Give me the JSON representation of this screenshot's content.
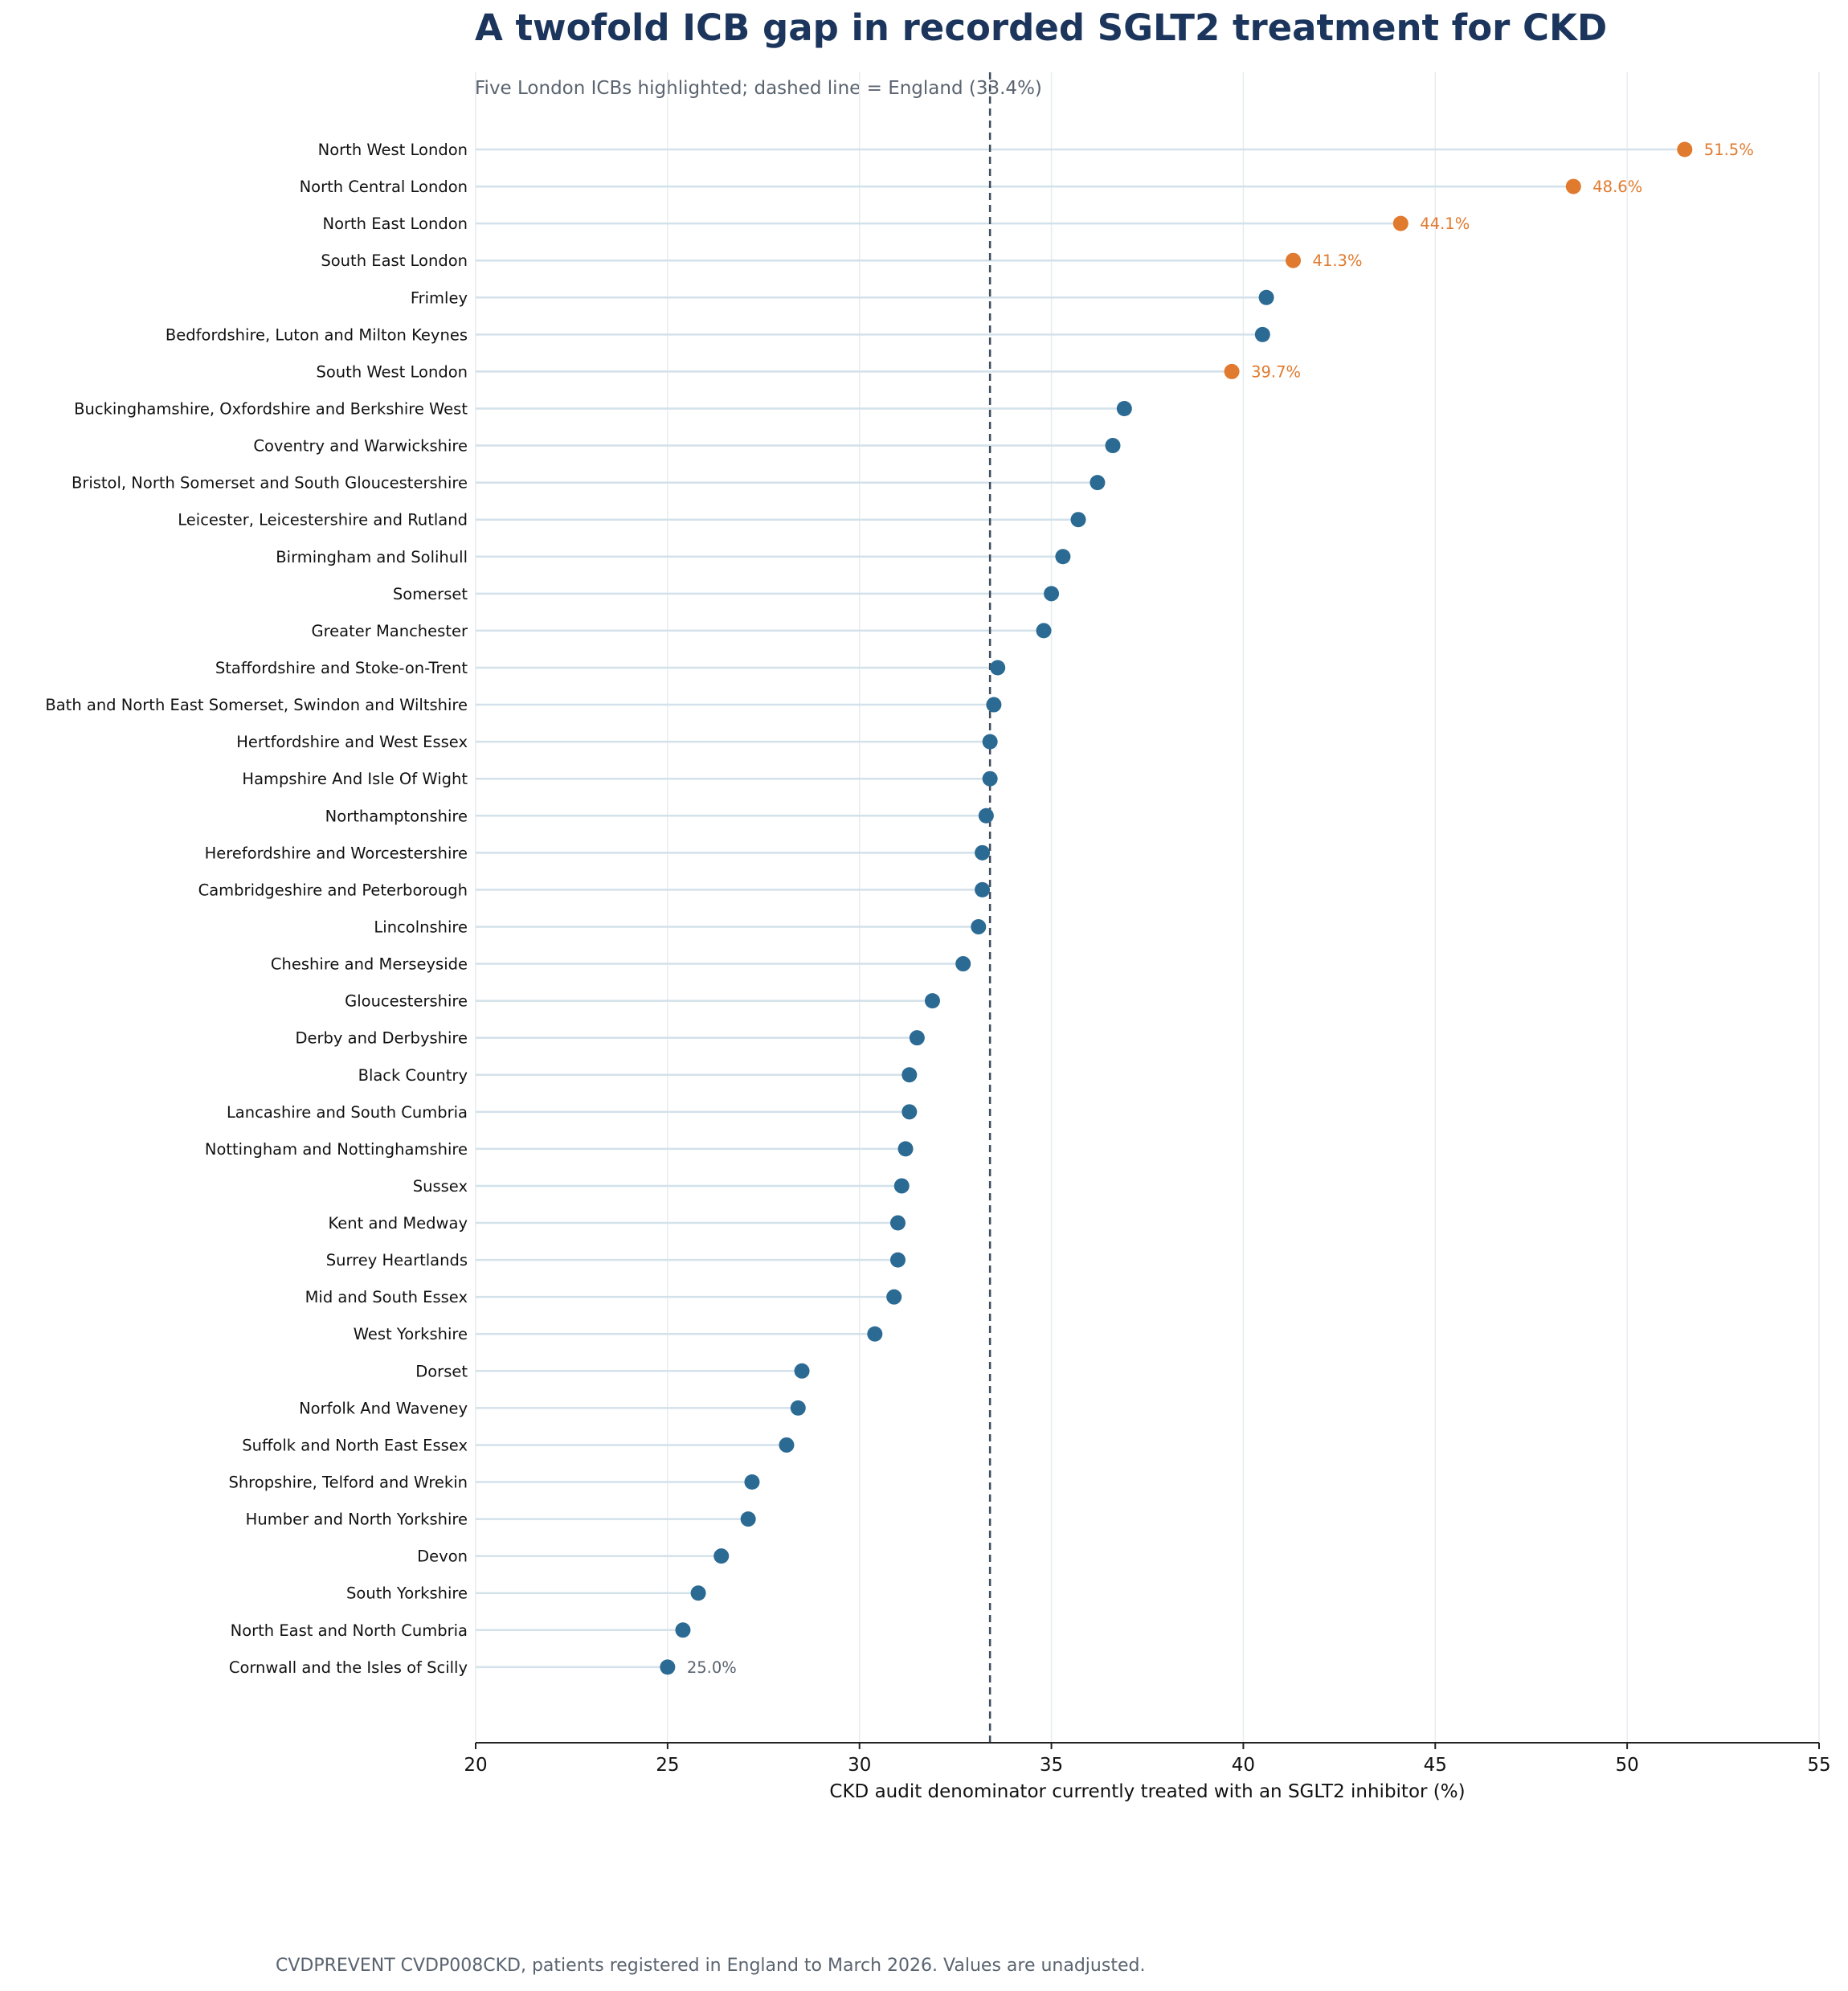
{
  "chart_data": {
    "type": "dot",
    "title": "A twofold ICB gap in recorded SGLT2 treatment for CKD",
    "subtitle": "Five London ICBs highlighted; dashed line = England (33.4%)",
    "xlabel": "CKD audit denominator currently treated with an SGLT2 inhibitor (%)",
    "xlim": [
      20,
      55
    ],
    "xticks": [
      20,
      25,
      30,
      35,
      40,
      45,
      50,
      55
    ],
    "grid": "vertical",
    "reference_line": {
      "value": 33.4,
      "style": "dashed"
    },
    "source": "CVDPREVENT CVDP008CKD, patients registered in England to March 2026. Values are unadjusted.",
    "colors": {
      "highlight": "#e07a2e",
      "default": "#2b6a93",
      "reference": "#3f4c5c",
      "stem": "#d3e1ea",
      "grid": "#e6ecf0",
      "title": "#1b355c",
      "muted": "#5a6470"
    },
    "points": [
      {
        "label": "North West London",
        "value": 51.5,
        "highlight": true,
        "value_label": "51.5%"
      },
      {
        "label": "North Central London",
        "value": 48.6,
        "highlight": true,
        "value_label": "48.6%"
      },
      {
        "label": "North East London",
        "value": 44.1,
        "highlight": true,
        "value_label": "44.1%"
      },
      {
        "label": "South East London",
        "value": 41.3,
        "highlight": true,
        "value_label": "41.3%"
      },
      {
        "label": "Frimley",
        "value": 40.6
      },
      {
        "label": "Bedfordshire, Luton and Milton Keynes",
        "value": 40.5
      },
      {
        "label": "South West London",
        "value": 39.7,
        "highlight": true,
        "value_label": "39.7%"
      },
      {
        "label": "Buckinghamshire, Oxfordshire and Berkshire West",
        "value": 36.9
      },
      {
        "label": "Coventry and Warwickshire",
        "value": 36.6
      },
      {
        "label": "Bristol, North Somerset and South Gloucestershire",
        "value": 36.2
      },
      {
        "label": "Leicester, Leicestershire and Rutland",
        "value": 35.7
      },
      {
        "label": "Birmingham and Solihull",
        "value": 35.3
      },
      {
        "label": "Somerset",
        "value": 35.0
      },
      {
        "label": "Greater Manchester",
        "value": 34.8
      },
      {
        "label": "Staffordshire and Stoke-on-Trent",
        "value": 33.6
      },
      {
        "label": "Bath and North East Somerset, Swindon and Wiltshire",
        "value": 33.5
      },
      {
        "label": "Hertfordshire and West Essex",
        "value": 33.4
      },
      {
        "label": "Hampshire And Isle Of Wight",
        "value": 33.4
      },
      {
        "label": "Northamptonshire",
        "value": 33.3
      },
      {
        "label": "Herefordshire and Worcestershire",
        "value": 33.2
      },
      {
        "label": "Cambridgeshire and Peterborough",
        "value": 33.2
      },
      {
        "label": "Lincolnshire",
        "value": 33.1
      },
      {
        "label": "Cheshire and Merseyside",
        "value": 32.7
      },
      {
        "label": "Gloucestershire",
        "value": 31.9
      },
      {
        "label": "Derby and Derbyshire",
        "value": 31.5
      },
      {
        "label": "Black Country",
        "value": 31.3
      },
      {
        "label": "Lancashire and South Cumbria",
        "value": 31.3
      },
      {
        "label": "Nottingham and Nottinghamshire",
        "value": 31.2
      },
      {
        "label": "Sussex",
        "value": 31.1
      },
      {
        "label": "Kent and Medway",
        "value": 31.0
      },
      {
        "label": "Surrey Heartlands",
        "value": 31.0
      },
      {
        "label": "Mid and South Essex",
        "value": 30.9
      },
      {
        "label": "West Yorkshire",
        "value": 30.4
      },
      {
        "label": "Dorset",
        "value": 28.5
      },
      {
        "label": "Norfolk And Waveney",
        "value": 28.4
      },
      {
        "label": "Suffolk and North East Essex",
        "value": 28.1
      },
      {
        "label": "Shropshire, Telford and Wrekin",
        "value": 27.2
      },
      {
        "label": "Humber and North Yorkshire",
        "value": 27.1
      },
      {
        "label": "Devon",
        "value": 26.4
      },
      {
        "label": "South Yorkshire",
        "value": 25.8
      },
      {
        "label": "North East and North Cumbria",
        "value": 25.4
      },
      {
        "label": "Cornwall and the Isles of Scilly",
        "value": 25.0,
        "value_label": "25.0%"
      }
    ]
  }
}
